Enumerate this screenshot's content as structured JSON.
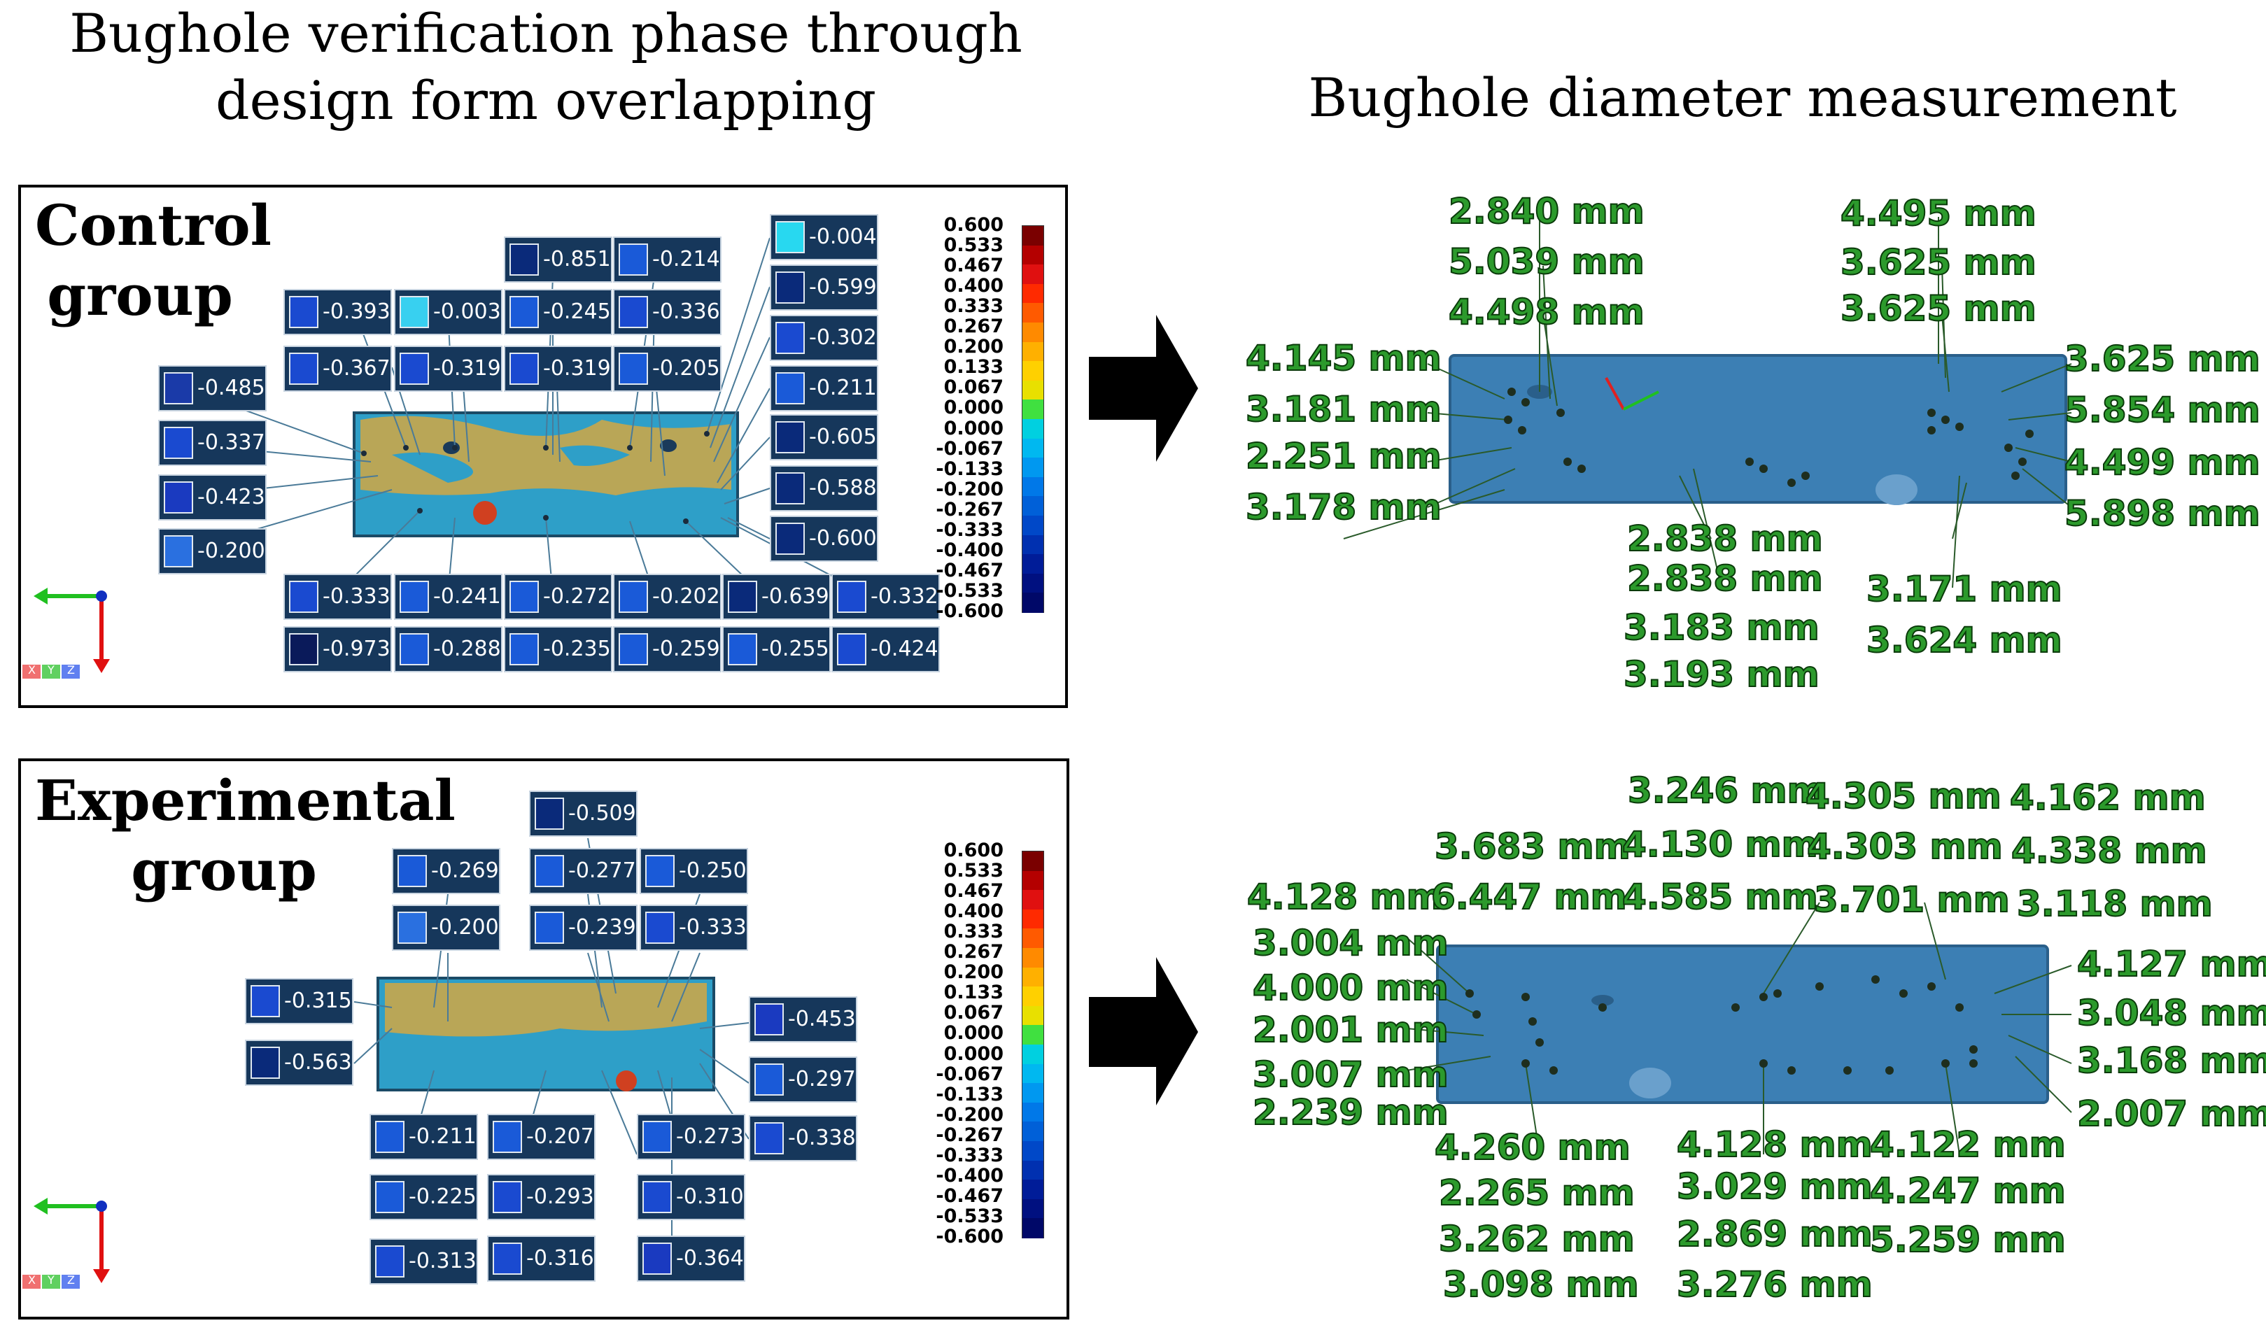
{
  "titles": {
    "left_line1": "Bughole verification phase through",
    "left_line2": "design form overlapping",
    "right": "Bughole diameter measurement"
  },
  "control": {
    "label_line1": "Control",
    "label_line2": "group",
    "values": [
      "-0.851",
      "-0.214",
      "-0.004",
      "-0.393",
      "-0.003",
      "-0.245",
      "-0.336",
      "-0.599",
      "-0.367",
      "-0.319",
      "-0.319",
      "-0.205",
      "-0.302",
      "-0.485",
      "-0.211",
      "-0.337",
      "-0.605",
      "-0.423",
      "-0.588",
      "-0.200",
      "-0.600",
      "-0.333",
      "-0.241",
      "-0.272",
      "-0.202",
      "-0.639",
      "-0.332",
      "-0.973",
      "-0.288",
      "-0.235",
      "-0.259",
      "-0.255",
      "-0.424"
    ],
    "measurements": [
      "2.840 mm",
      "5.039 mm",
      "4.498 mm",
      "4.495 mm",
      "3.625 mm",
      "3.625 mm",
      "4.145 mm",
      "3.181 mm",
      "2.251 mm",
      "3.178 mm",
      "3.625 mm",
      "5.854 mm",
      "4.499 mm",
      "5.898 mm",
      "2.838 mm",
      "2.838 mm",
      "3.183 mm",
      "3.193 mm",
      "3.171 mm",
      "3.624 mm"
    ]
  },
  "experimental": {
    "label_line1": "Experimental",
    "label_line2": "group",
    "values": [
      "-0.509",
      "-0.269",
      "-0.277",
      "-0.250",
      "-0.200",
      "-0.239",
      "-0.333",
      "-0.315",
      "-0.563",
      "-0.453",
      "-0.297",
      "-0.211",
      "-0.207",
      "-0.273",
      "-0.338",
      "-0.225",
      "-0.293",
      "-0.310",
      "-0.313",
      "-0.316",
      "-0.364"
    ],
    "measurements": [
      "3.246 mm",
      "4.305 mm",
      "4.162 mm",
      "3.683 mm",
      "4.130 mm",
      "4.303 mm",
      "4.338 mm",
      "4.128 mm",
      "6.447 mm",
      "4.585 mm",
      "3.701 mm",
      "3.118 mm",
      "3.004 mm",
      "4.000 mm",
      "2.001 mm",
      "3.007 mm",
      "2.239 mm",
      "4.127 mm",
      "3.048 mm",
      "3.168 mm",
      "2.007 mm",
      "4.260 mm",
      "2.265 mm",
      "3.262 mm",
      "3.098 mm",
      "4.128 mm",
      "3.029 mm",
      "2.869 mm",
      "3.276 mm",
      "4.122 mm",
      "4.247 mm",
      "5.259 mm"
    ]
  },
  "color_scale": [
    "0.600",
    "0.533",
    "0.467",
    "0.400",
    "0.333",
    "0.267",
    "0.200",
    "0.133",
    "0.067",
    "0.000",
    "0.000",
    "-0.067",
    "-0.133",
    "-0.200",
    "-0.267",
    "-0.333",
    "-0.400",
    "-0.467",
    "-0.533",
    "-0.600"
  ],
  "color_scale_colors": [
    "#7a0000",
    "#b40000",
    "#e01010",
    "#ff2a00",
    "#ff5a00",
    "#ff8a00",
    "#ffb000",
    "#ffd000",
    "#e8e000",
    "#40e040",
    "#00d0e0",
    "#00b8f0",
    "#0098f0",
    "#0078e8",
    "#0060d8",
    "#0048c8",
    "#0030b0",
    "#001c98",
    "#001080",
    "#000868"
  ],
  "axis_labels": [
    "X",
    "Y",
    "Z"
  ],
  "colors": {
    "box_bg": "#16375b",
    "measure_text": "#2c9a2c",
    "specimen_blue": "#3c7fb4"
  }
}
